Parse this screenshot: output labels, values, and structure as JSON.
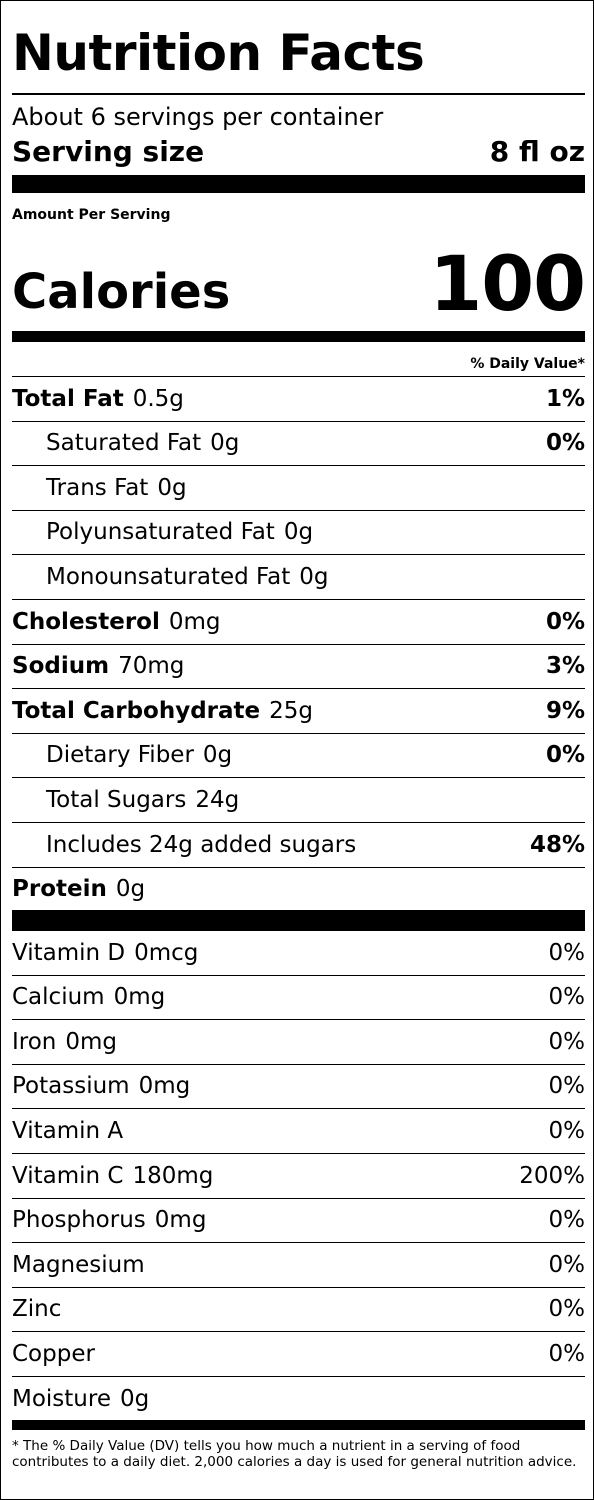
{
  "title": "Nutrition Facts",
  "servings_per_container": "About 6 servings per container",
  "serving_size_label": "Serving size",
  "serving_size_value": "8 fl oz",
  "amount_per_serving": "Amount Per Serving",
  "calories_label": "Calories",
  "calories_value": "100",
  "daily_value_header": "% Daily Value*",
  "nutrients": [
    {
      "name": "Total Fat",
      "amount": "0.5g",
      "dv": "1%"
    },
    {
      "name": "Saturated Fat",
      "amount": "0g",
      "dv": "0%"
    },
    {
      "name": "Trans Fat",
      "amount": "0g",
      "dv": ""
    },
    {
      "name": "Polyunsaturated Fat",
      "amount": "0g",
      "dv": ""
    },
    {
      "name": "Monounsaturated Fat",
      "amount": "0g",
      "dv": ""
    },
    {
      "name": "Cholesterol",
      "amount": "0mg",
      "dv": "0%"
    },
    {
      "name": "Sodium",
      "amount": "70mg",
      "dv": "3%"
    },
    {
      "name": "Total Carbohydrate",
      "amount": "25g",
      "dv": "9%"
    },
    {
      "name": "Dietary Fiber",
      "amount": "0g",
      "dv": "0%"
    },
    {
      "name": "Total Sugars",
      "amount": "24g",
      "dv": ""
    },
    {
      "name": "Includes 24g added sugars",
      "amount": "",
      "dv": "48%"
    },
    {
      "name": "Protein",
      "amount": "0g",
      "dv": ""
    }
  ],
  "vitamins": [
    {
      "name": "Vitamin D",
      "amount": "0mcg",
      "dv": "0%"
    },
    {
      "name": "Calcium",
      "amount": "0mg",
      "dv": "0%"
    },
    {
      "name": "Iron",
      "amount": "0mg",
      "dv": "0%"
    },
    {
      "name": "Potassium",
      "amount": "0mg",
      "dv": "0%"
    },
    {
      "name": "Vitamin A",
      "amount": "",
      "dv": "0%"
    },
    {
      "name": "Vitamin C",
      "amount": "180mg",
      "dv": "200%"
    },
    {
      "name": "Phosphorus",
      "amount": "0mg",
      "dv": "0%"
    },
    {
      "name": "Magnesium",
      "amount": "",
      "dv": "0%"
    },
    {
      "name": "Zinc",
      "amount": "",
      "dv": "0%"
    },
    {
      "name": "Copper",
      "amount": "",
      "dv": "0%"
    },
    {
      "name": "Moisture",
      "amount": "0g",
      "dv": ""
    }
  ],
  "footnote": "* The % Daily Value (DV) tells you how much a nutrient in a serving of food contributes to a daily diet. 2,000 calories a day is used for general nutrition advice."
}
